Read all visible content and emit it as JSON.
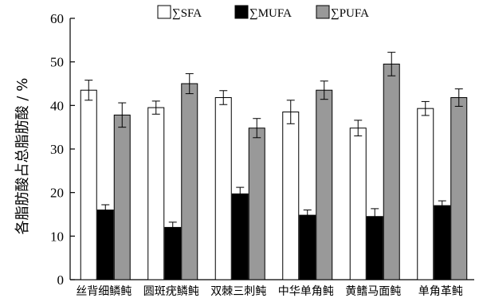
{
  "chart_data": {
    "type": "bar",
    "ylabel": "各脂肪酸占总脂肪酸 / %",
    "ylim": [
      0,
      60
    ],
    "yticks": [
      0,
      10,
      20,
      30,
      40,
      50,
      60
    ],
    "categories": [
      "丝背细鳞鲀",
      "圆斑疣鳞鲀",
      "双棘三刺鲀",
      "中华单角鲀",
      "黄鳍马面鲀",
      "单角革鲀"
    ],
    "legend_position": "top",
    "series": [
      {
        "name": "∑SFA",
        "fill": "#ffffff",
        "values": [
          43.5,
          39.5,
          41.8,
          38.5,
          34.8,
          39.3
        ],
        "errors": [
          2.3,
          1.5,
          1.6,
          2.7,
          1.8,
          1.6
        ]
      },
      {
        "name": "∑MUFA",
        "fill": "#000000",
        "values": [
          16.0,
          12.0,
          19.7,
          14.8,
          14.5,
          17.0
        ],
        "errors": [
          1.2,
          1.2,
          1.5,
          1.2,
          1.8,
          1.1
        ]
      },
      {
        "name": "∑PUFA",
        "fill": "#999999",
        "values": [
          37.8,
          45.0,
          34.8,
          43.5,
          49.5,
          41.8
        ],
        "errors": [
          2.8,
          2.3,
          2.2,
          2.1,
          2.7,
          2.0
        ]
      }
    ]
  }
}
